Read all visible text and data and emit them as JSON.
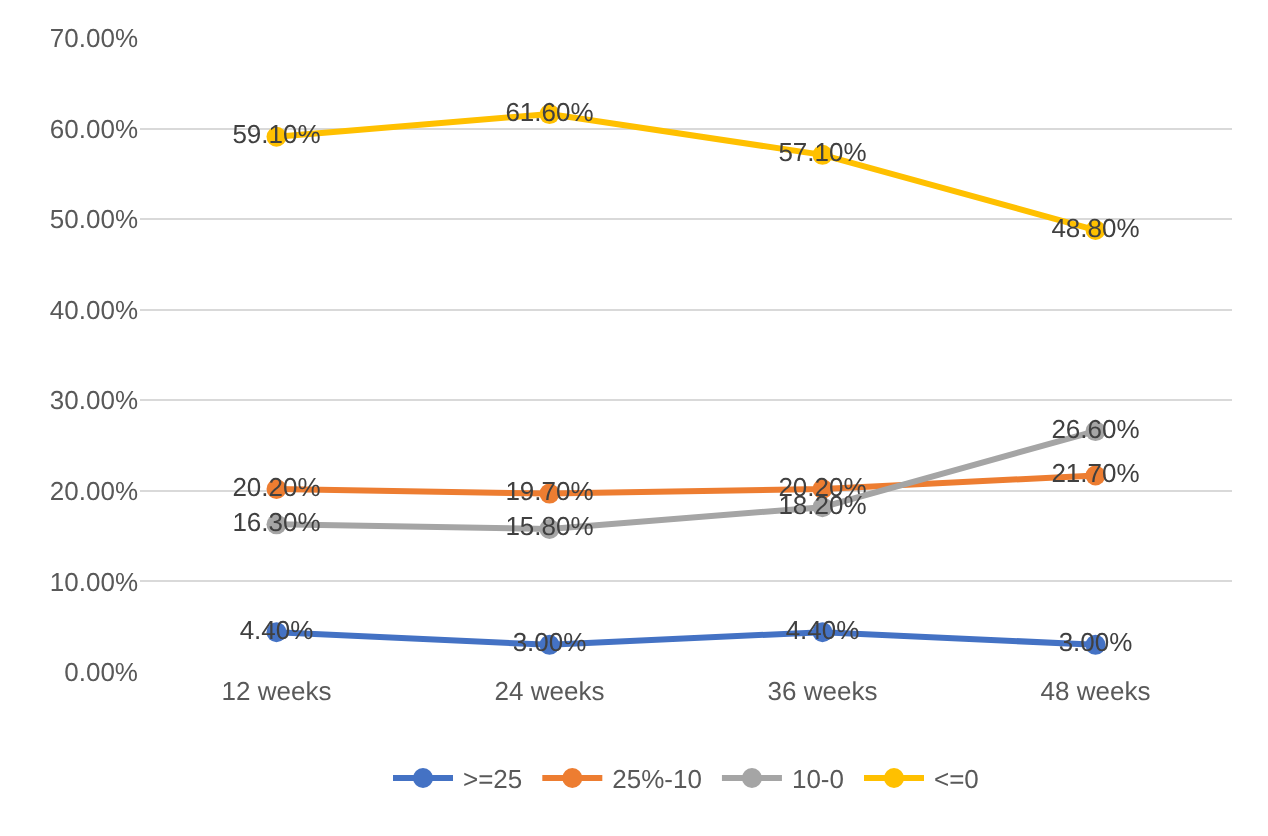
{
  "chart_data": {
    "type": "line",
    "categories": [
      "12 weeks",
      "24 weeks",
      "36 weeks",
      "48 weeks"
    ],
    "series": [
      {
        "name": ">=25",
        "color": "#4472c4",
        "values": [
          4.4,
          3.0,
          4.4,
          3.0
        ],
        "value_labels": [
          "4.40%",
          "3.00%",
          "4.40%",
          "3.00%"
        ]
      },
      {
        "name": "25%-10",
        "color": "#ed7d31",
        "values": [
          20.2,
          19.7,
          20.2,
          21.7
        ],
        "value_labels": [
          "20.20%",
          "19.70%",
          "20.20%",
          "21.70%"
        ]
      },
      {
        "name": "10-0",
        "color": "#a5a5a5",
        "values": [
          16.3,
          15.8,
          18.2,
          26.6
        ],
        "value_labels": [
          "16.30%",
          "15.80%",
          "18.20%",
          "26.60%"
        ]
      },
      {
        "name": "<=0",
        "color": "#ffc000",
        "values": [
          59.1,
          61.6,
          57.1,
          48.8
        ],
        "value_labels": [
          "59.10%",
          "61.60%",
          "57.10%",
          "48.80%"
        ]
      }
    ],
    "ylim": [
      0,
      70
    ],
    "yticks": [
      {
        "value": 0,
        "label": "0.00%"
      },
      {
        "value": 10,
        "label": "10.00%"
      },
      {
        "value": 20,
        "label": "20.00%"
      },
      {
        "value": 30,
        "label": "30.00%"
      },
      {
        "value": 40,
        "label": "40.00%"
      },
      {
        "value": 50,
        "label": "50.00%"
      },
      {
        "value": 60,
        "label": "60.00%"
      },
      {
        "value": 70,
        "label": "70.00%"
      }
    ],
    "grid": "y",
    "legend": "bottom",
    "marker": "circle",
    "line_style": "solid"
  }
}
